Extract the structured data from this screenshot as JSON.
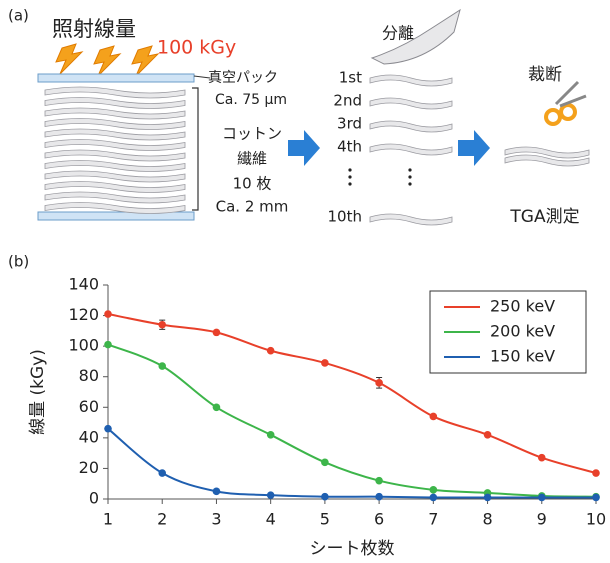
{
  "panel_a": {
    "label": "(a)",
    "dose_title": "照射線量",
    "dose": "100 kGy",
    "vacuum_pack": "真空パック",
    "pack_thickness": "Ca. 75 μm",
    "cotton": [
      "コットン",
      "繊維",
      "10 枚",
      "Ca. 2 mm"
    ],
    "separation": "分離",
    "sheets": [
      "1st",
      "2nd",
      "3rd",
      "4th",
      "10th"
    ],
    "cutting": "裁断",
    "measurement": "TGA測定"
  },
  "panel_b_label": "(b)",
  "chart_data": {
    "type": "line",
    "xlabel": "シート枚数",
    "ylabel": "線量 (kGy)",
    "x": [
      1,
      2,
      3,
      4,
      5,
      6,
      7,
      8,
      9,
      10
    ],
    "xlim": [
      1,
      10
    ],
    "xticks": [
      1,
      2,
      3,
      4,
      5,
      6,
      7,
      8,
      9,
      10
    ],
    "ylim": [
      0,
      140
    ],
    "yticks": [
      0,
      20,
      40,
      60,
      80,
      100,
      120,
      140
    ],
    "legend": "upper right",
    "series": [
      {
        "name": "250 keV",
        "color": "#e8402a",
        "values": [
          121,
          114,
          109,
          97,
          89,
          76,
          54,
          42,
          27,
          17
        ],
        "errors": [
          null,
          3,
          null,
          null,
          null,
          3.5,
          null,
          null,
          null,
          null
        ]
      },
      {
        "name": "200 keV",
        "color": "#3db54a",
        "values": [
          101,
          87,
          60,
          42,
          24,
          12,
          6,
          4,
          2,
          1.5
        ]
      },
      {
        "name": "150 keV",
        "color": "#1f5fb0",
        "values": [
          46,
          17,
          5,
          2.5,
          1.5,
          1.5,
          1,
          1,
          1,
          1
        ]
      }
    ]
  }
}
